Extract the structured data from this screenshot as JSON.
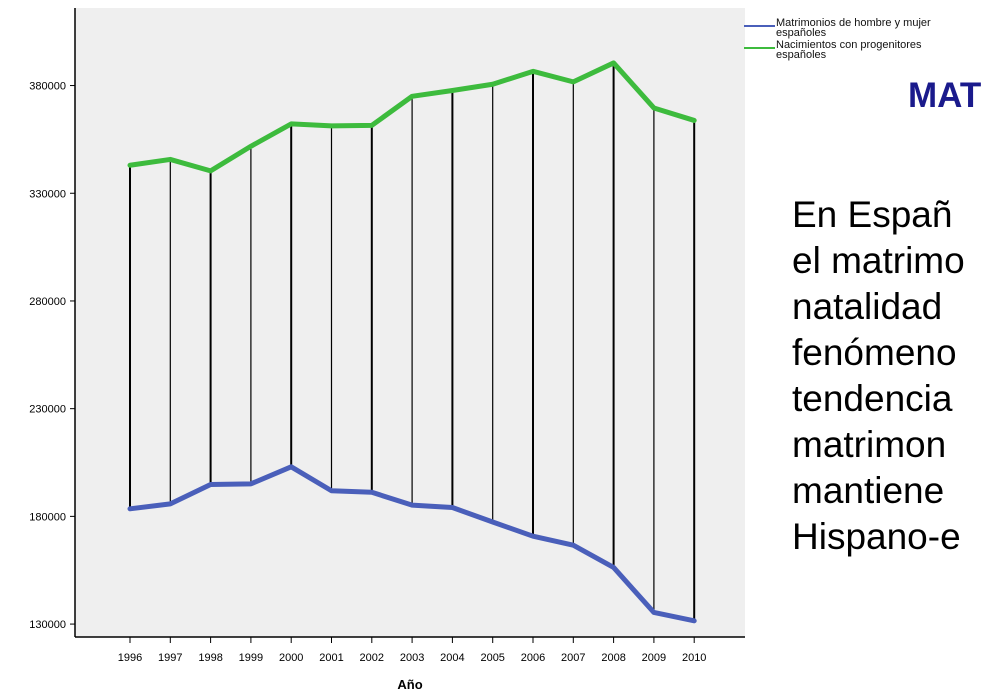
{
  "chart_data": {
    "type": "line",
    "xlabel": "Año",
    "ylabel": "",
    "x": [
      "1996",
      "1997",
      "1998",
      "1999",
      "2000",
      "2001",
      "2002",
      "2003",
      "2004",
      "2005",
      "2006",
      "2007",
      "2008",
      "2009",
      "2010"
    ],
    "series": [
      {
        "name": "Matrimonios de hombre y mujer españoles",
        "color": "#4a5fba",
        "values": [
          183500,
          185800,
          194800,
          195100,
          203000,
          191900,
          191200,
          185200,
          184100,
          177400,
          170800,
          166600,
          156300,
          135400,
          131500
        ]
      },
      {
        "name": "Nacimientos con progenitores españoles",
        "color": "#3dbb3d",
        "values": [
          343000,
          345700,
          340400,
          351800,
          362200,
          361300,
          361500,
          375000,
          377700,
          380600,
          386600,
          381700,
          390500,
          369600,
          363800
        ]
      }
    ],
    "yticks": [
      130000,
      180000,
      230000,
      280000,
      330000,
      380000
    ],
    "ylim": [
      124000,
      416000
    ],
    "grid": false,
    "drop_lines": true,
    "legend_position": "top-right outside"
  },
  "legend": {
    "items": [
      {
        "label_line1": "Matrimonios de hombre y mujer",
        "label_line2": "españoles",
        "color": "#4a5fba"
      },
      {
        "label_line1": "Nacimientos con progenitores",
        "label_line2": "españoles",
        "color": "#3dbb3d"
      }
    ]
  },
  "slide": {
    "title": "MAT",
    "title_color": "#1a1a8c",
    "body_lines": [
      "En Españ",
      "el matrimo",
      "natalidad",
      "fenómeno",
      "tendencia",
      "matrimon",
      "mantiene",
      "Hispano-e"
    ]
  }
}
